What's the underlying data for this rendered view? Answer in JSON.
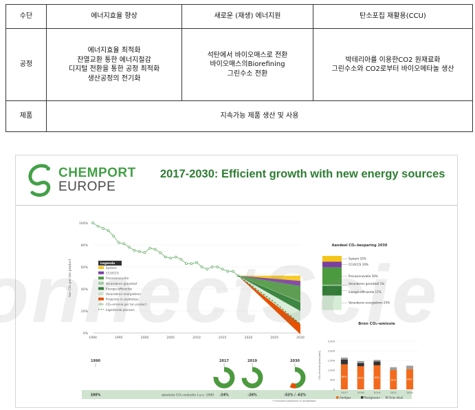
{
  "table": {
    "headers": [
      "수단",
      "에너지효율 향상",
      "새로운 (재생) 에너지원",
      "탄소포집 재활용(CCU)"
    ],
    "process_label": "공정",
    "process_cells": [
      [
        "에너지효율 최적화",
        "잔열교환 통한 에너지절감",
        "디지털 전환을 통한 공정 최적화",
        "생산공정의 전기화"
      ],
      [
        "석탄에서 바이오매스로 전환",
        "바이오매스의Biorefining",
        "그린수소 전환"
      ],
      [
        "박테리아를 이용한CO2 원재료화",
        "그린수소와 CO2로부터 바이오메타놀 생산"
      ]
    ],
    "product_label": "제품",
    "product_text": "지속가능 제품 생산 및 사용"
  },
  "slide": {
    "logo_line1": "CHEMPORT",
    "logo_line2": "EUROPE",
    "title": "2017-2030: Efficient growth with new energy sources",
    "colors": {
      "brand_green": "#43a047",
      "system": "#f5c518",
      "ccu": "#7b3fa0",
      "proces": "#4c9a3f",
      "grondstof": "#a5d6a7",
      "energie": "#2e7d32",
      "energiebron": "#d7ecd7",
      "projecten": "#e65100",
      "aardgas": "#f26b1d",
      "restgassen": "#333333",
      "grijs": "#9e9e9e"
    }
  },
  "chart_data": [
    {
      "type": "line",
      "ylabel": "ton CO₂ per ton product",
      "yticks": [
        "100%",
        "80%",
        "60%",
        "40%",
        "20%",
        "0%"
      ],
      "xticks": [
        "1990",
        "1995",
        "2000",
        "2005",
        "2010",
        "2015",
        "2020",
        "2025",
        "2030"
      ],
      "ylim": [
        0,
        100
      ],
      "xlim": [
        1990,
        2030
      ],
      "series": [
        {
          "name": "CO₂-emissie per ton product",
          "x": [
            1990,
            1991,
            1992,
            1993,
            1994,
            1995,
            1996,
            1997,
            1998,
            1999,
            2000,
            2001,
            2002,
            2003,
            2004,
            2005,
            2006,
            2007,
            2008,
            2009,
            2010,
            2011,
            2012,
            2013,
            2014,
            2015,
            2016,
            2017,
            2018
          ],
          "y": [
            100,
            97,
            95,
            93,
            88,
            82,
            81,
            78,
            75,
            74,
            73,
            77,
            76,
            73,
            69,
            68,
            69,
            67,
            63,
            63,
            64,
            60,
            58,
            60,
            60,
            58,
            56,
            56,
            52
          ]
        },
        {
          "name": "Ingediende plannen",
          "x": [
            2018,
            2020,
            2025,
            2030
          ],
          "y": [
            52,
            45,
            28,
            8
          ]
        }
      ],
      "legend": {
        "title": "Legenda",
        "items": [
          "System",
          "CCU/CCS",
          "Procesinnovatie",
          "Veranderen grondstof",
          "Energie-efficientie",
          "Veranderen energiebron",
          "Projecten in studiefase",
          "CO₂-emissie per ton product",
          "Ingediende plannen"
        ]
      },
      "milestones": [
        {
          "year": "1990",
          "value": "100%"
        },
        {
          "year": "2017",
          "value": "-24%"
        },
        {
          "year": "2019",
          "value": "-26%"
        },
        {
          "year": "2030",
          "value": "-52% / -62%"
        }
      ],
      "reduction_label": "absolute CO₂-reductie t.o.v. 1990",
      "footnote": "* inclusief projecten in studiefase"
    },
    {
      "type": "bar",
      "title": "Aandeel CO₂-besparing 2030",
      "categories": [
        "System",
        "CCU/CCS",
        "Procesinnovatie",
        "Veranderen grondstof",
        "Energie-efficientie",
        "Veranderen energiebron"
      ],
      "values": [
        10,
        10,
        30,
        1,
        17,
        25
      ],
      "labels": [
        "System 10%",
        "CCU/CCS 10%",
        "Procesinnovatie 30%",
        "Veranderen grondstof 1%",
        "Energie-efficientie 17%",
        "Veranderen energiebron 25%"
      ]
    },
    {
      "type": "bar",
      "title": "Bron CO₂-emissie",
      "ylabel": "CO₂-emissie [kton/jaar]",
      "categories": [
        "2017",
        "2018",
        "2019",
        "2021",
        "2030"
      ],
      "yticks": [
        "2,500",
        "2,000",
        "1,500",
        "1,000",
        "500",
        "0"
      ],
      "ylim": [
        0,
        2500
      ],
      "series": [
        {
          "name": "Aardgas",
          "values": [
            1300,
            1200,
            1250,
            1000,
            1050
          ],
          "labels": [
            "80%",
            "80%",
            "83%",
            "91%",
            "81%"
          ]
        },
        {
          "name": "Restgassen",
          "values": [
            250,
            170,
            200,
            0,
            0
          ]
        },
        {
          "name": "Grijs afval",
          "values": [
            100,
            100,
            80,
            150,
            180
          ]
        }
      ]
    }
  ],
  "watermark": "onnectScie"
}
